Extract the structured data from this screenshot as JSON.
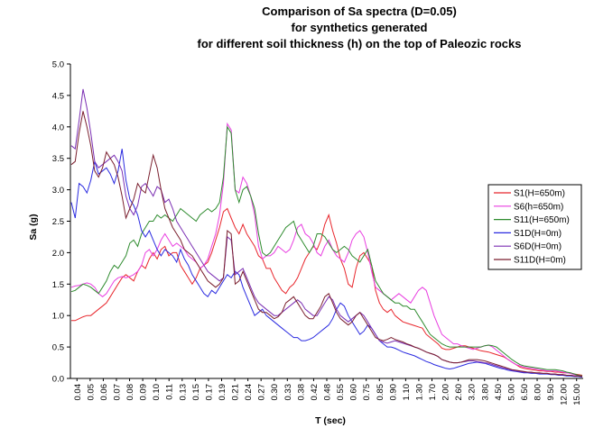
{
  "chart_data": {
    "type": "line",
    "title_lines": [
      "Comparison of Sa spectra (D=0.05)",
      "for synthetics generated",
      "for different soil thickness (h) on the top of Paleozic rocks"
    ],
    "xlabel": "T (sec)",
    "ylabel": "Sa (g)",
    "ylim": [
      0,
      5
    ],
    "y_ticks": [
      "0.0",
      "0.5",
      "1.0",
      "1.5",
      "2.0",
      "2.5",
      "3.0",
      "3.5",
      "4.0",
      "4.5",
      "5.0"
    ],
    "x_tick_labels": [
      "0.04",
      "0.05",
      "0.06",
      "0.07",
      "0.08",
      "0.09",
      "0.10",
      "0.11",
      "0.13",
      "0.15",
      "0.17",
      "0.19",
      "0.21",
      "0.24",
      "0.27",
      "0.30",
      "0.33",
      "0.38",
      "0.42",
      "0.48",
      "0.55",
      "0.60",
      "0.75",
      "0.85",
      "0.90",
      "1.10",
      "1.30",
      "1.70",
      "2.00",
      "2.60",
      "3.20",
      "3.80",
      "4.50",
      "5.00",
      "6.50",
      "8.00",
      "9.50",
      "12.00",
      "15.00"
    ],
    "series": [
      {
        "name": "S1(H=650m)",
        "color": "#e8262c",
        "values": [
          0.92,
          0.92,
          0.95,
          0.98,
          1.0,
          1.0,
          1.05,
          1.1,
          1.15,
          1.2,
          1.3,
          1.4,
          1.5,
          1.6,
          1.65,
          1.6,
          1.55,
          1.7,
          1.8,
          1.75,
          1.9,
          2.0,
          1.9,
          2.05,
          2.1,
          1.95,
          2.0,
          2.0,
          1.8,
          1.7,
          1.6,
          1.5,
          1.6,
          1.75,
          1.8,
          1.85,
          2.0,
          2.2,
          2.4,
          2.65,
          2.7,
          2.55,
          2.4,
          2.3,
          2.45,
          2.3,
          2.2,
          2.1,
          1.95,
          1.9,
          1.75,
          1.75,
          1.6,
          1.5,
          1.4,
          1.35,
          1.45,
          1.5,
          1.6,
          1.75,
          1.9,
          2.0,
          2.1,
          2.05,
          2.2,
          2.45,
          2.6,
          2.35,
          2.15,
          1.9,
          1.75,
          1.5,
          1.45,
          1.75,
          1.95,
          2.0,
          1.9,
          1.8,
          1.4,
          1.2,
          1.1,
          1.05,
          1.1,
          1.0,
          0.95,
          0.9,
          0.88,
          0.86,
          0.84,
          0.82,
          0.8,
          0.7,
          0.65,
          0.6,
          0.55,
          0.48,
          0.46,
          0.46,
          0.48,
          0.5,
          0.52,
          0.52,
          0.5,
          0.48,
          0.46,
          0.44,
          0.43,
          0.42,
          0.4,
          0.38,
          0.36,
          0.34,
          0.3,
          0.26,
          0.22,
          0.18,
          0.16,
          0.15,
          0.14,
          0.13,
          0.12,
          0.12,
          0.11,
          0.11,
          0.1,
          0.1,
          0.09,
          0.09,
          0.08,
          0.07,
          0.06,
          0.05
        ]
      },
      {
        "name": "S6(h=650m)",
        "color": "#e83ee0",
        "values": [
          1.45,
          1.47,
          1.48,
          1.5,
          1.52,
          1.5,
          1.45,
          1.35,
          1.3,
          1.35,
          1.45,
          1.55,
          1.6,
          1.62,
          1.6,
          1.62,
          1.65,
          1.7,
          1.8,
          2.0,
          2.05,
          1.95,
          2.05,
          2.2,
          2.3,
          2.2,
          2.1,
          2.15,
          2.1,
          2.05,
          1.95,
          1.9,
          1.85,
          1.75,
          1.8,
          1.9,
          2.1,
          2.3,
          2.6,
          3.1,
          4.05,
          3.95,
          3.0,
          2.95,
          3.2,
          3.1,
          2.9,
          2.6,
          2.1,
          1.9,
          1.95,
          1.95,
          2.0,
          2.1,
          2.05,
          2.0,
          2.05,
          2.2,
          2.4,
          2.45,
          2.3,
          2.25,
          2.15,
          2.0,
          1.95,
          2.1,
          2.2,
          2.05,
          1.95,
          1.9,
          1.85,
          2.0,
          2.2,
          2.3,
          2.35,
          2.25,
          2.0,
          1.7,
          1.45,
          1.4,
          1.35,
          1.3,
          1.25,
          1.3,
          1.35,
          1.3,
          1.25,
          1.2,
          1.3,
          1.4,
          1.45,
          1.4,
          1.2,
          1.0,
          0.85,
          0.7,
          0.65,
          0.6,
          0.55,
          0.55,
          0.52,
          0.5,
          0.48,
          0.46,
          0.48,
          0.5,
          0.52,
          0.53,
          0.5,
          0.45,
          0.4,
          0.35,
          0.3,
          0.26,
          0.22,
          0.2,
          0.18,
          0.17,
          0.16,
          0.15,
          0.14,
          0.13,
          0.12,
          0.12,
          0.12,
          0.11,
          0.1,
          0.09,
          0.08,
          0.06,
          0.05,
          0.04
        ]
      },
      {
        "name": "S11(H=650m)",
        "color": "#2e8b2e",
        "values": [
          1.38,
          1.4,
          1.45,
          1.5,
          1.48,
          1.45,
          1.4,
          1.35,
          1.45,
          1.55,
          1.7,
          1.8,
          1.75,
          1.85,
          1.95,
          2.15,
          2.2,
          2.1,
          2.3,
          2.4,
          2.5,
          2.5,
          2.6,
          2.55,
          2.6,
          2.55,
          2.5,
          2.6,
          2.7,
          2.65,
          2.6,
          2.55,
          2.5,
          2.6,
          2.65,
          2.7,
          2.65,
          2.7,
          2.8,
          3.2,
          4.0,
          3.9,
          3.0,
          2.8,
          3.0,
          3.05,
          2.9,
          2.7,
          2.3,
          2.0,
          1.95,
          2.0,
          2.1,
          2.2,
          2.3,
          2.4,
          2.45,
          2.5,
          2.3,
          2.2,
          2.1,
          2.0,
          2.1,
          2.3,
          2.3,
          2.25,
          2.15,
          2.05,
          2.0,
          2.05,
          2.1,
          2.05,
          1.95,
          1.9,
          1.85,
          1.95,
          2.05,
          1.8,
          1.55,
          1.45,
          1.35,
          1.3,
          1.25,
          1.2,
          1.2,
          1.15,
          1.15,
          1.1,
          1.1,
          1.0,
          0.9,
          0.8,
          0.7,
          0.65,
          0.6,
          0.55,
          0.52,
          0.5,
          0.5,
          0.5,
          0.5,
          0.5,
          0.5,
          0.5,
          0.5,
          0.5,
          0.52,
          0.53,
          0.52,
          0.5,
          0.45,
          0.4,
          0.35,
          0.3,
          0.26,
          0.22,
          0.2,
          0.19,
          0.18,
          0.17,
          0.16,
          0.15,
          0.14,
          0.14,
          0.14,
          0.13,
          0.12,
          0.1,
          0.09,
          0.07,
          0.05,
          0.04
        ]
      },
      {
        "name": "S1D(H=0m)",
        "color": "#2a2ae0",
        "values": [
          2.8,
          2.55,
          3.1,
          3.05,
          2.95,
          3.15,
          3.45,
          3.25,
          3.3,
          3.35,
          3.25,
          3.1,
          3.3,
          3.65,
          3.15,
          2.85,
          2.75,
          2.6,
          2.35,
          2.25,
          2.35,
          2.2,
          2.05,
          1.95,
          2.05,
          2.0,
          1.95,
          1.85,
          2.05,
          1.9,
          1.8,
          1.65,
          1.55,
          1.45,
          1.35,
          1.3,
          1.4,
          1.35,
          1.45,
          1.55,
          1.65,
          1.6,
          1.7,
          1.65,
          1.45,
          1.3,
          1.15,
          1.0,
          1.05,
          1.1,
          1.0,
          0.95,
          0.9,
          0.85,
          0.8,
          0.75,
          0.7,
          0.65,
          0.65,
          0.6,
          0.6,
          0.62,
          0.65,
          0.7,
          0.75,
          0.8,
          0.85,
          0.95,
          1.1,
          1.2,
          1.15,
          1.0,
          0.9,
          0.8,
          0.7,
          0.75,
          0.85,
          0.8,
          0.7,
          0.6,
          0.55,
          0.5,
          0.5,
          0.48,
          0.45,
          0.42,
          0.4,
          0.38,
          0.36,
          0.33,
          0.3,
          0.27,
          0.25,
          0.22,
          0.2,
          0.18,
          0.16,
          0.15,
          0.16,
          0.18,
          0.2,
          0.22,
          0.24,
          0.25,
          0.26,
          0.25,
          0.24,
          0.22,
          0.2,
          0.18,
          0.16,
          0.15,
          0.13,
          0.12,
          0.11,
          0.1,
          0.09,
          0.09,
          0.08,
          0.08,
          0.07,
          0.07,
          0.07,
          0.06,
          0.06,
          0.05,
          0.05,
          0.04,
          0.04,
          0.03,
          0.03,
          0.02
        ]
      },
      {
        "name": "S6D(H=0m)",
        "color": "#7b2fb3",
        "values": [
          3.7,
          3.65,
          4.1,
          4.6,
          4.3,
          3.9,
          3.45,
          3.35,
          3.4,
          3.45,
          3.5,
          3.55,
          3.45,
          3.3,
          2.9,
          2.7,
          2.6,
          2.75,
          3.05,
          3.1,
          3.0,
          2.9,
          3.05,
          3.0,
          2.8,
          2.85,
          2.7,
          2.5,
          2.4,
          2.3,
          2.2,
          2.1,
          2.0,
          1.9,
          1.8,
          1.7,
          1.65,
          1.6,
          1.55,
          1.6,
          2.25,
          2.2,
          1.65,
          1.7,
          1.75,
          1.6,
          1.45,
          1.3,
          1.2,
          1.15,
          1.1,
          1.05,
          1.0,
          1.0,
          1.05,
          1.1,
          1.15,
          1.2,
          1.25,
          1.2,
          1.1,
          1.05,
          1.0,
          1.0,
          1.1,
          1.2,
          1.3,
          1.25,
          1.1,
          1.0,
          0.95,
          0.9,
          0.95,
          1.0,
          1.05,
          1.0,
          0.9,
          0.8,
          0.7,
          0.6,
          0.58,
          0.56,
          0.58,
          0.6,
          0.58,
          0.56,
          0.54,
          0.52,
          0.5,
          0.48,
          0.45,
          0.42,
          0.4,
          0.38,
          0.35,
          0.3,
          0.28,
          0.26,
          0.25,
          0.25,
          0.26,
          0.27,
          0.28,
          0.28,
          0.27,
          0.26,
          0.25,
          0.24,
          0.22,
          0.2,
          0.18,
          0.16,
          0.15,
          0.13,
          0.12,
          0.11,
          0.1,
          0.1,
          0.09,
          0.09,
          0.08,
          0.08,
          0.08,
          0.07,
          0.07,
          0.06,
          0.06,
          0.05,
          0.05,
          0.04,
          0.04,
          0.03
        ]
      },
      {
        "name": "S11D(H=0m)",
        "color": "#7a1f2e",
        "values": [
          3.4,
          3.45,
          3.9,
          4.25,
          4.0,
          3.7,
          3.3,
          3.2,
          3.35,
          3.6,
          3.5,
          3.4,
          3.2,
          2.9,
          2.55,
          2.7,
          2.85,
          3.1,
          3.0,
          2.95,
          3.25,
          3.55,
          3.35,
          3.0,
          2.7,
          2.55,
          2.4,
          2.3,
          2.2,
          2.05,
          2.0,
          1.95,
          1.85,
          1.75,
          1.65,
          1.55,
          1.5,
          1.45,
          1.5,
          1.6,
          2.35,
          2.3,
          1.5,
          1.55,
          1.7,
          1.55,
          1.4,
          1.25,
          1.1,
          1.05,
          1.05,
          1.0,
          0.95,
          0.98,
          1.05,
          1.2,
          1.25,
          1.3,
          1.2,
          1.1,
          1.0,
          0.95,
          0.95,
          1.05,
          1.15,
          1.3,
          1.35,
          1.2,
          1.05,
          0.95,
          0.9,
          0.85,
          0.9,
          1.0,
          1.05,
          0.95,
          0.85,
          0.75,
          0.65,
          0.62,
          0.6,
          0.62,
          0.65,
          0.62,
          0.6,
          0.58,
          0.55,
          0.53,
          0.5,
          0.48,
          0.45,
          0.42,
          0.4,
          0.38,
          0.35,
          0.3,
          0.28,
          0.26,
          0.25,
          0.25,
          0.26,
          0.28,
          0.3,
          0.3,
          0.3,
          0.29,
          0.28,
          0.26,
          0.24,
          0.22,
          0.2,
          0.18,
          0.16,
          0.14,
          0.13,
          0.12,
          0.11,
          0.1,
          0.1,
          0.09,
          0.09,
          0.08,
          0.08,
          0.07,
          0.07,
          0.06,
          0.06,
          0.05,
          0.05,
          0.04,
          0.04,
          0.03
        ]
      }
    ]
  }
}
